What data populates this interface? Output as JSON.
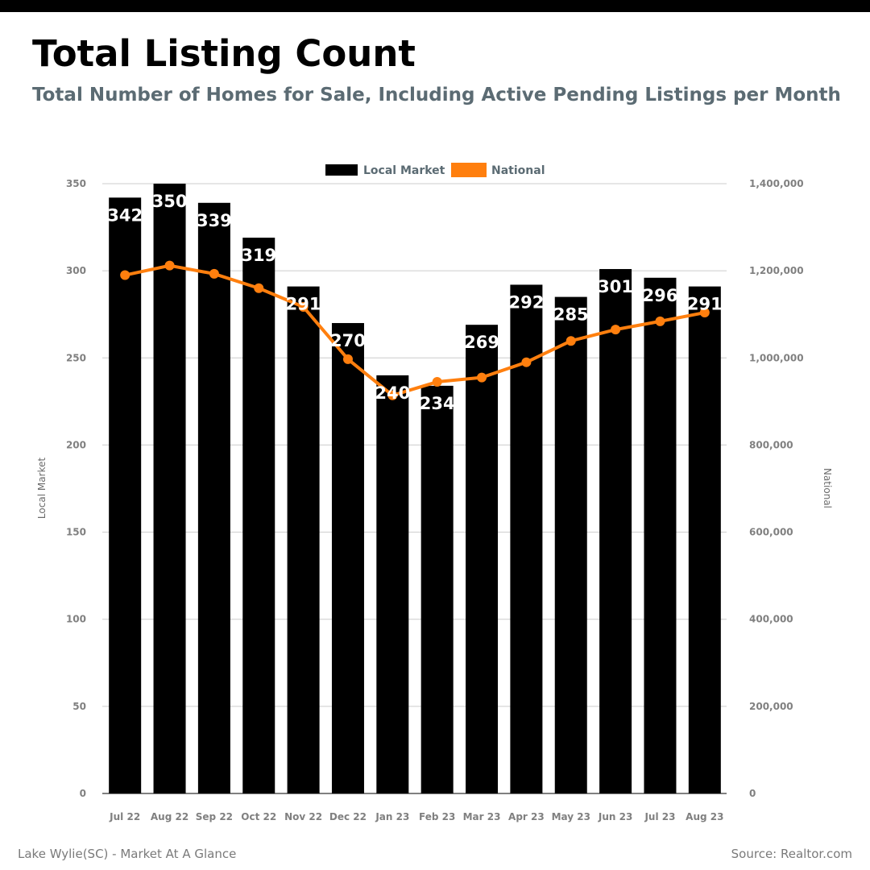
{
  "title": "Total Listing Count",
  "subtitle": "Total Number of Homes for Sale, Including Active Pending Listings per Month",
  "footer": {
    "left": "Lake Wylie(SC) - Market At A Glance",
    "right": "Source: Realtor.com"
  },
  "colors": {
    "local_bar": "#000000",
    "national_line": "#ff7f0e",
    "subtitle": "#5b6b73",
    "grid": "#cccccc",
    "tick_text": "#808080"
  },
  "chart_data": {
    "type": "bar",
    "categories": [
      "Jul 22",
      "Aug 22",
      "Sep 22",
      "Oct 22",
      "Nov 22",
      "Dec 22",
      "Jan 23",
      "Feb 23",
      "Mar 23",
      "Apr 23",
      "May 23",
      "Jun 23",
      "Jul 23",
      "Aug 23"
    ],
    "series": [
      {
        "name": "Local Market",
        "type": "bar",
        "axis": "left",
        "values": [
          342,
          350,
          339,
          319,
          291,
          270,
          240,
          234,
          269,
          292,
          285,
          301,
          296,
          291
        ]
      },
      {
        "name": "National",
        "type": "line",
        "axis": "right",
        "values": [
          1190000,
          1212000,
          1193000,
          1160000,
          1117000,
          997000,
          914000,
          945000,
          955000,
          990000,
          1039000,
          1065000,
          1084000,
          1104000
        ]
      }
    ],
    "ylabel_left": "Local Market",
    "ylabel_right": "National",
    "ylim_left": [
      0,
      350
    ],
    "ylim_right": [
      0,
      1400000
    ],
    "yticks_left": [
      "0",
      "50",
      "100",
      "150",
      "200",
      "250",
      "300",
      "350"
    ],
    "yticks_right": [
      "0",
      "200,000",
      "400,000",
      "600,000",
      "800,000",
      "1,000,000",
      "1,200,000",
      "1,400,000"
    ],
    "legend": {
      "placement": "top-center",
      "entries": [
        "Local Market",
        "National"
      ]
    },
    "grid": true,
    "data_labels": true
  }
}
